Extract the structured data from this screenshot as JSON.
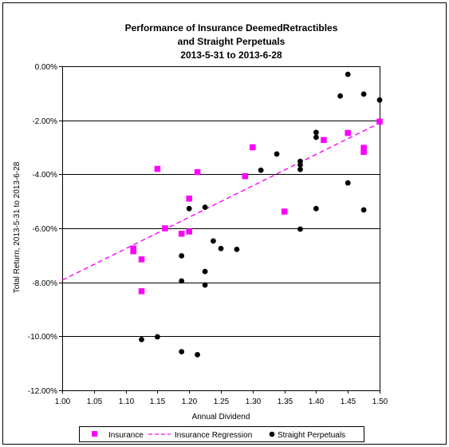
{
  "chart_data": {
    "type": "scatter",
    "title_lines": [
      "Performance of Insurance DeemedRetractibles",
      "and Straight Perpetuals",
      "2013-5-31 to 2013-6-28"
    ],
    "xlabel": "Annual Dividend",
    "ylabel": "Total Return, 2013-5-31 to 2013-6-28",
    "xlim": [
      1.0,
      1.5
    ],
    "ylim": [
      -12,
      0
    ],
    "x_ticks": [
      "1.00",
      "1.05",
      "1.10",
      "1.15",
      "1.20",
      "1.25",
      "1.30",
      "1.35",
      "1.40",
      "1.45",
      "1.50"
    ],
    "y_ticks": [
      "0.00%",
      "-2.00%",
      "-4.00%",
      "-6.00%",
      "-8.00%",
      "-10.00%",
      "-12.00%"
    ],
    "gridlines": "horizontal",
    "legend_position": "bottom",
    "colors": {
      "insurance": "#ff00ff",
      "straight": "#000000"
    },
    "series": [
      {
        "name": "Insurance",
        "marker": "square",
        "points": [
          [
            1.112,
            -6.75
          ],
          [
            1.112,
            -6.85
          ],
          [
            1.125,
            -7.15
          ],
          [
            1.125,
            -8.33
          ],
          [
            1.15,
            -3.8
          ],
          [
            1.162,
            -6.0
          ],
          [
            1.188,
            -6.2
          ],
          [
            1.2,
            -6.12
          ],
          [
            1.2,
            -4.9
          ],
          [
            1.213,
            -3.92
          ],
          [
            1.288,
            -4.07
          ],
          [
            1.3,
            -3.0
          ],
          [
            1.35,
            -5.38
          ],
          [
            1.412,
            -2.73
          ],
          [
            1.45,
            -2.47
          ],
          [
            1.475,
            -3.02
          ],
          [
            1.475,
            -3.17
          ],
          [
            1.5,
            -2.05
          ]
        ]
      },
      {
        "name": "Insurance Regression",
        "line": "dashed",
        "points": [
          [
            1.0,
            -7.92
          ],
          [
            1.5,
            -2.1
          ]
        ]
      },
      {
        "name": "Straight Perpetuals",
        "marker": "circle",
        "points": [
          [
            1.125,
            -10.12
          ],
          [
            1.15,
            -10.02
          ],
          [
            1.188,
            -7.02
          ],
          [
            1.188,
            -7.95
          ],
          [
            1.188,
            -10.57
          ],
          [
            1.2,
            -5.27
          ],
          [
            1.213,
            -10.68
          ],
          [
            1.225,
            -5.22
          ],
          [
            1.225,
            -7.6
          ],
          [
            1.225,
            -8.1
          ],
          [
            1.238,
            -6.47
          ],
          [
            1.25,
            -6.75
          ],
          [
            1.275,
            -6.78
          ],
          [
            1.313,
            -3.85
          ],
          [
            1.338,
            -3.25
          ],
          [
            1.375,
            -3.52
          ],
          [
            1.375,
            -3.65
          ],
          [
            1.375,
            -3.82
          ],
          [
            1.375,
            -6.03
          ],
          [
            1.4,
            -2.45
          ],
          [
            1.4,
            -2.63
          ],
          [
            1.4,
            -5.27
          ],
          [
            1.438,
            -1.1
          ],
          [
            1.45,
            -0.3
          ],
          [
            1.45,
            -4.32
          ],
          [
            1.475,
            -1.03
          ],
          [
            1.475,
            -5.32
          ],
          [
            1.5,
            -1.25
          ]
        ]
      }
    ]
  }
}
